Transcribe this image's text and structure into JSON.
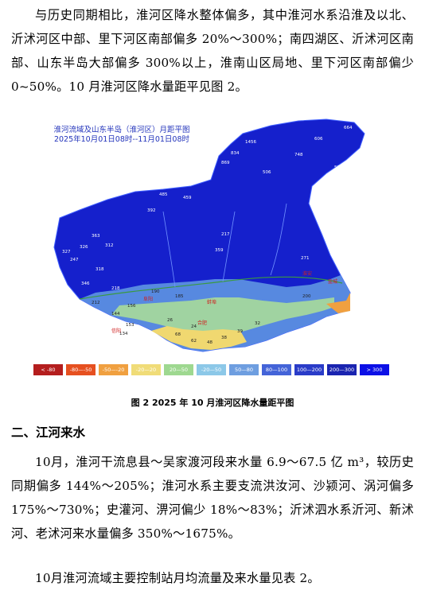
{
  "paragraphs": {
    "p1": "与历史同期相比，淮河区降水整体偏多，其中淮河水系沿淮及以北、沂沭河区中部、里下河区南部偏多 20%～300%；南四湖区、沂沭河区南部、山东半岛大部偏多 300%以上，淮南山区局地、里下河区南部偏少 0~50%。10 月淮河区降水量距平见图 2。",
    "p2": "10月，淮河干流息县～吴家渡河段来水量 6.9～67.5 亿 m³，较历史同期偏多 144%～205%；淮河水系主要支流洪汝河、沙颍河、涡河偏多 175%～730%；史灌河、淠河偏少 18%～83%；沂沭泗水系沂河、新沭河、老沭河来水量偏多 350%～1675%。",
    "p3": "10月淮河流域主要控制站月均流量及来水量见表 2。"
  },
  "figure": {
    "map_title_line1": "淮河流域及山东半岛（淮河区）月距平图",
    "map_title_line2": "2025年10月01日08时--11月01日08时",
    "caption": "图 2   2025 年 10 月淮河区降水量距平图",
    "legend": [
      {
        "label": "< -80",
        "color": "#b41e1e"
      },
      {
        "label": "-80—-50",
        "color": "#e65020"
      },
      {
        "label": "-50—-20",
        "color": "#f0a040"
      },
      {
        "label": "-20—20",
        "color": "#f0dc78"
      },
      {
        "label": "20—50",
        "color": "#9ed890"
      },
      {
        "label": "-20—50",
        "color": "#8cc8e8"
      },
      {
        "label": "50—80",
        "color": "#6e9ee0"
      },
      {
        "label": "80—100",
        "color": "#4464d8"
      },
      {
        "label": "100—200",
        "color": "#2a3cc8"
      },
      {
        "label": "200—300",
        "color": "#1a24b0"
      },
      {
        "label": "> 300",
        "color": "#0c10e6"
      }
    ],
    "labels": [
      "1456",
      "664",
      "834",
      "606",
      "869",
      "748",
      "506",
      "505",
      "485",
      "459",
      "392",
      "359",
      "363",
      "326",
      "327",
      "247",
      "312",
      "346",
      "318",
      "271",
      "217",
      "200",
      "218",
      "190",
      "185",
      "156",
      "144",
      "212",
      "153",
      "134",
      "68",
      "62",
      "48",
      "38",
      "39",
      "24",
      "26",
      "32"
    ],
    "cities": [
      "淮安",
      "盐城",
      "阜阳",
      "蚌埠",
      "合肥",
      "信阳"
    ]
  },
  "section": {
    "title": "二、江河来水"
  }
}
